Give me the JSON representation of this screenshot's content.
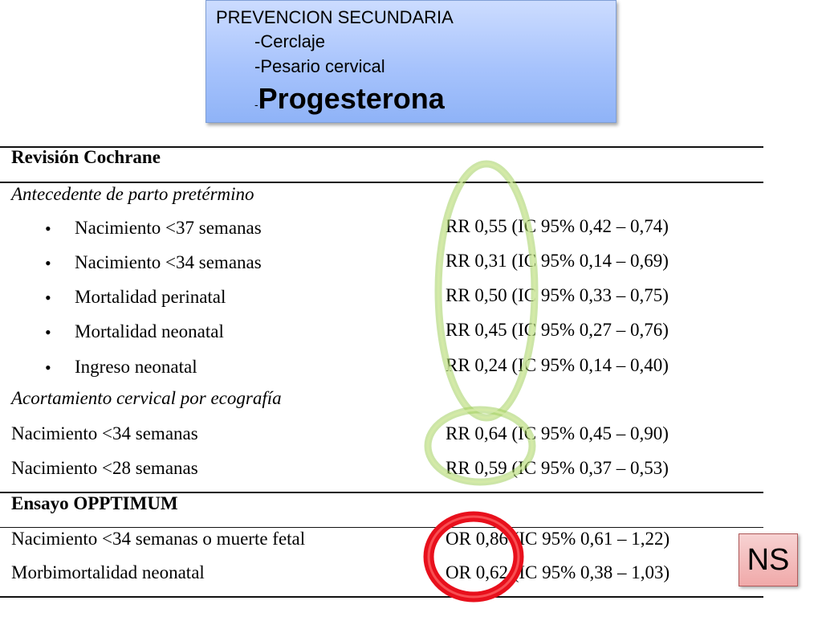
{
  "callout": {
    "heading": "PREVENCION SECUNDARIA",
    "item1": "-Cerclaje",
    "item2": "-Pesario cervical",
    "item3_dash": "-",
    "item3": "Progesterona"
  },
  "cochrane": {
    "header": "Revisión Cochrane",
    "group1": "Antecedente de parto pretérmino",
    "bullet_char": "•",
    "rows1": [
      {
        "label": "Nacimiento <37 semanas",
        "value": "RR 0,55 (IC 95% 0,42 – 0,74)"
      },
      {
        "label": "Nacimiento <34 semanas",
        "value": "RR 0,31 (IC 95% 0,14 – 0,69)"
      },
      {
        "label": "Mortalidad perinatal",
        "value": "RR 0,50 (IC 95% 0,33 – 0,75)"
      },
      {
        "label": "Mortalidad neonatal",
        "value": "RR 0,45 (IC 95% 0,27 – 0,76)"
      },
      {
        "label": "Ingreso neonatal",
        "value": "RR 0,24 (IC 95% 0,14 – 0,40)"
      }
    ],
    "group2": "Acortamiento cervical por ecografía",
    "rows2": [
      {
        "label": "Nacimiento <34 semanas",
        "value": "RR 0,64 (IC 95% 0,45 – 0,90)"
      },
      {
        "label": "Nacimiento <28 semanas",
        "value": "RR 0,59 (IC 95% 0,37 – 0,53)"
      }
    ]
  },
  "opptimum": {
    "header": "Ensayo OPPTIMUM",
    "rows": [
      {
        "label": "Nacimiento <34 semanas o muerte fetal",
        "value": "OR 0,86 (IC 95% 0,61 – 1,22)"
      },
      {
        "label": "Morbimortalidad neonatal",
        "value": "OR 0,62 (IC 95% 0,38 – 1,03)"
      }
    ]
  },
  "ns_label": "NS",
  "colors": {
    "green_highlight": "#b5d77a",
    "red_highlight": "#e8101c",
    "callout_blue": "#a7c3fc",
    "ns_pink": "#f0a9a9"
  }
}
